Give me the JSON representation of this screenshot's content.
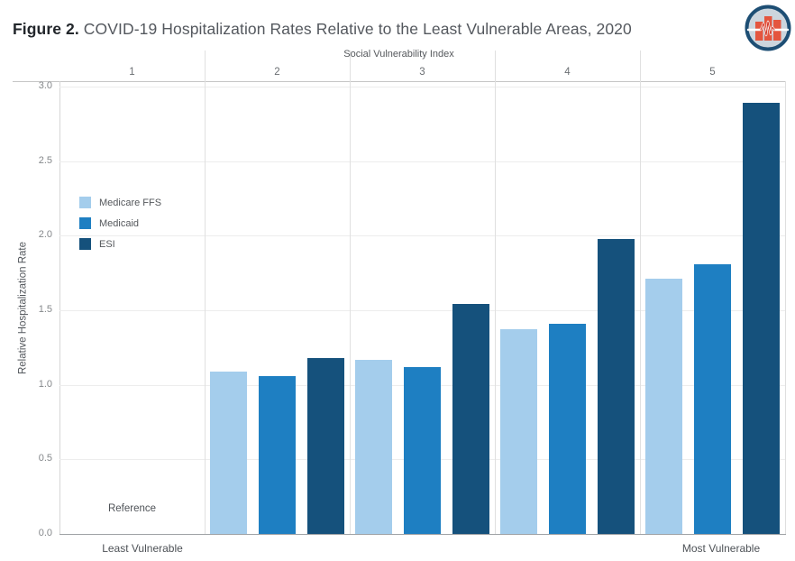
{
  "figure": {
    "title_prefix": "Figure 2.",
    "title_rest": " COVID-19 Hospitalization Rates Relative to the Least Vulnerable Areas, 2020"
  },
  "logo": {
    "name": "pulse-bar-chart-logo",
    "ring_color": "#1d4e74",
    "bg_color": "#ccd5dd",
    "bar_color": "#e4553e",
    "pulse_color": "#d43b2a",
    "line_color": "#ffffff"
  },
  "chart_data": {
    "type": "bar",
    "column_header": "Social Vulnerability Index",
    "categories": [
      "1",
      "2",
      "3",
      "4",
      "5"
    ],
    "series": [
      {
        "name": "Medicare FFS",
        "color": "#a4cdec",
        "values": [
          null,
          1.09,
          1.17,
          1.37,
          1.71
        ]
      },
      {
        "name": "Medicaid",
        "color": "#1e7fc2",
        "values": [
          null,
          1.06,
          1.12,
          1.41,
          1.81
        ]
      },
      {
        "name": "ESI",
        "color": "#15517c",
        "values": [
          null,
          1.18,
          1.54,
          1.98,
          2.89
        ]
      }
    ],
    "reference_label": "Reference",
    "ylabel": "Relative Hospitalization Rate",
    "ytick_labels": [
      "0.0",
      "0.5",
      "1.0",
      "1.5",
      "2.0",
      "2.5",
      "3.0"
    ],
    "ylim": [
      0,
      3.0
    ],
    "x_end_labels": {
      "left": "Least Vulnerable",
      "right": "Most Vulnerable"
    },
    "legend_position": "upper-left-inside",
    "grid": "horizontal"
  }
}
